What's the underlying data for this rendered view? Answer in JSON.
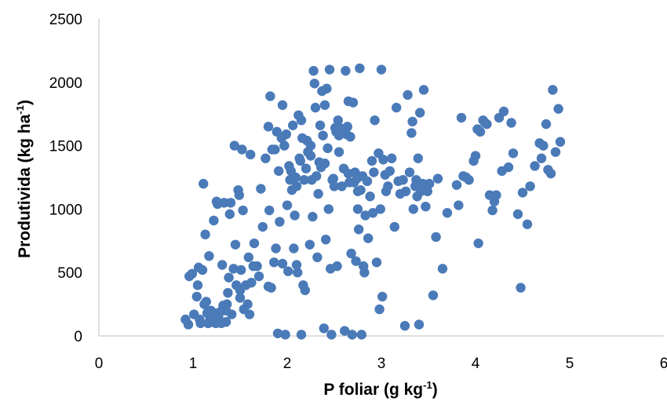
{
  "chart_data": {
    "type": "scatter",
    "title": "",
    "xlabel": {
      "main": "P foliar (g kg",
      "sup": "-1",
      "end": ")"
    },
    "ylabel": {
      "main": "Produtivida (kg ha",
      "sup": "-1",
      "end": ")"
    },
    "xlim": [
      0,
      6
    ],
    "ylim": [
      0,
      2500
    ],
    "x_ticks": [
      "0",
      "1",
      "2",
      "3",
      "4",
      "5",
      "6"
    ],
    "y_ticks": [
      "0",
      "500",
      "1000",
      "1500",
      "2000",
      "2500"
    ],
    "grid": false,
    "legend": "none",
    "marker_color": "#4a7ab8",
    "series": [
      {
        "points": [
          [
            0.92,
            130
          ],
          [
            0.95,
            90
          ],
          [
            0.96,
            470
          ],
          [
            0.99,
            490
          ],
          [
            1.01,
            170
          ],
          [
            1.04,
            310
          ],
          [
            1.05,
            400
          ],
          [
            1.06,
            540
          ],
          [
            1.07,
            130
          ],
          [
            1.08,
            100
          ],
          [
            1.1,
            520
          ],
          [
            1.11,
            1200
          ],
          [
            1.12,
            250
          ],
          [
            1.13,
            800
          ],
          [
            1.14,
            270
          ],
          [
            1.15,
            180
          ],
          [
            1.16,
            100
          ],
          [
            1.17,
            630
          ],
          [
            1.18,
            150
          ],
          [
            1.19,
            200
          ],
          [
            1.2,
            110
          ],
          [
            1.22,
            910
          ],
          [
            1.23,
            180
          ],
          [
            1.24,
            100
          ],
          [
            1.25,
            1060
          ],
          [
            1.26,
            1040
          ],
          [
            1.27,
            150
          ],
          [
            1.29,
            190
          ],
          [
            1.3,
            100
          ],
          [
            1.31,
            560
          ],
          [
            1.32,
            240
          ],
          [
            1.33,
            1050
          ],
          [
            1.35,
            110
          ],
          [
            1.36,
            250
          ],
          [
            1.37,
            340
          ],
          [
            1.38,
            460
          ],
          [
            1.39,
            960
          ],
          [
            1.4,
            1050
          ],
          [
            1.41,
            170
          ],
          [
            1.43,
            530
          ],
          [
            1.44,
            1500
          ],
          [
            1.45,
            720
          ],
          [
            1.46,
            400
          ],
          [
            1.48,
            1150
          ],
          [
            1.49,
            1110
          ],
          [
            1.5,
            300
          ],
          [
            1.51,
            520
          ],
          [
            1.52,
            1470
          ],
          [
            1.53,
            990
          ],
          [
            1.54,
            210
          ],
          [
            1.56,
            400
          ],
          [
            1.58,
            250
          ],
          [
            1.59,
            620
          ],
          [
            1.6,
            170
          ],
          [
            1.61,
            1430
          ],
          [
            1.62,
            420
          ],
          [
            1.64,
            550
          ],
          [
            1.65,
            730
          ],
          [
            1.68,
            550
          ],
          [
            1.7,
            470
          ],
          [
            1.72,
            1160
          ],
          [
            1.74,
            860
          ],
          [
            1.77,
            1400
          ],
          [
            1.8,
            1650
          ],
          [
            1.81,
            990
          ],
          [
            1.82,
            1890
          ],
          [
            1.83,
            380
          ],
          [
            1.84,
            1470
          ],
          [
            1.86,
            580
          ],
          [
            1.87,
            1470
          ],
          [
            1.88,
            690
          ],
          [
            1.89,
            1610
          ],
          [
            1.9,
            20
          ],
          [
            1.91,
            1300
          ],
          [
            1.92,
            900
          ],
          [
            1.94,
            1560
          ],
          [
            1.95,
            1820
          ],
          [
            1.97,
            1500
          ],
          [
            1.98,
            10
          ],
          [
            1.99,
            1590
          ],
          [
            2.0,
            1030
          ],
          [
            2.01,
            510
          ],
          [
            2.02,
            1340
          ],
          [
            2.03,
            1230
          ],
          [
            2.04,
            1300
          ],
          [
            2.06,
            1660
          ],
          [
            2.07,
            690
          ],
          [
            2.08,
            950
          ],
          [
            2.09,
            1250
          ],
          [
            2.1,
            1180
          ],
          [
            2.11,
            500
          ],
          [
            2.12,
            1740
          ],
          [
            2.13,
            1400
          ],
          [
            2.14,
            1380
          ],
          [
            2.15,
            10
          ],
          [
            2.16,
            1560
          ],
          [
            2.17,
            400
          ],
          [
            2.18,
            1230
          ],
          [
            2.19,
            360
          ],
          [
            2.2,
            1320
          ],
          [
            2.21,
            1540
          ],
          [
            2.22,
            1450
          ],
          [
            2.24,
            720
          ],
          [
            2.25,
            1500
          ],
          [
            2.26,
            1230
          ],
          [
            2.27,
            940
          ],
          [
            2.28,
            2090
          ],
          [
            2.29,
            1990
          ],
          [
            2.3,
            1800
          ],
          [
            2.31,
            1260
          ],
          [
            2.32,
            620
          ],
          [
            2.33,
            1120
          ],
          [
            2.34,
            1370
          ],
          [
            2.35,
            1660
          ],
          [
            2.36,
            1330
          ],
          [
            2.37,
            1930
          ],
          [
            2.38,
            1580
          ],
          [
            2.39,
            60
          ],
          [
            2.4,
            1820
          ],
          [
            2.41,
            760
          ],
          [
            2.42,
            1950
          ],
          [
            2.43,
            1480
          ],
          [
            2.44,
            1000
          ],
          [
            2.45,
            2100
          ],
          [
            2.46,
            530
          ],
          [
            2.47,
            10
          ],
          [
            2.48,
            1230
          ],
          [
            2.49,
            1240
          ],
          [
            2.5,
            1180
          ],
          [
            2.51,
            1640
          ],
          [
            2.52,
            1610
          ],
          [
            2.53,
            550
          ],
          [
            2.54,
            1700
          ],
          [
            2.55,
            1450
          ],
          [
            2.56,
            1640
          ],
          [
            2.58,
            1180
          ],
          [
            2.6,
            1320
          ],
          [
            2.61,
            40
          ],
          [
            2.62,
            2090
          ],
          [
            2.63,
            1590
          ],
          [
            2.64,
            1650
          ],
          [
            2.65,
            1850
          ],
          [
            2.66,
            1210
          ],
          [
            2.67,
            1570
          ],
          [
            2.68,
            650
          ],
          [
            2.69,
            10
          ],
          [
            2.7,
            1840
          ],
          [
            2.71,
            1210
          ],
          [
            2.72,
            1290
          ],
          [
            2.73,
            590
          ],
          [
            2.74,
            1240
          ],
          [
            2.75,
            1140
          ],
          [
            2.76,
            840
          ],
          [
            2.77,
            2110
          ],
          [
            2.78,
            1150
          ],
          [
            2.79,
            10
          ],
          [
            2.8,
            1260
          ],
          [
            2.81,
            550
          ],
          [
            2.82,
            500
          ],
          [
            2.83,
            950
          ],
          [
            2.85,
            1220
          ],
          [
            2.86,
            770
          ],
          [
            2.88,
            1100
          ],
          [
            2.9,
            1380
          ],
          [
            2.91,
            970
          ],
          [
            2.92,
            1290
          ],
          [
            2.93,
            1700
          ],
          [
            2.95,
            580
          ],
          [
            2.97,
            1440
          ],
          [
            2.98,
            210
          ],
          [
            2.99,
            1000
          ],
          [
            3.0,
            2100
          ],
          [
            3.01,
            310
          ],
          [
            3.02,
            1390
          ],
          [
            3.04,
            1270
          ],
          [
            3.05,
            1140
          ],
          [
            3.07,
            1180
          ],
          [
            3.09,
            1300
          ],
          [
            3.11,
            1400
          ],
          [
            3.14,
            860
          ],
          [
            3.16,
            1800
          ],
          [
            3.18,
            1220
          ],
          [
            3.2,
            1120
          ],
          [
            3.23,
            1230
          ],
          [
            3.25,
            80
          ],
          [
            3.26,
            1140
          ],
          [
            3.28,
            1900
          ],
          [
            3.3,
            1290
          ],
          [
            3.32,
            1600
          ],
          [
            3.33,
            1690
          ],
          [
            3.34,
            1000
          ],
          [
            3.36,
            1180
          ],
          [
            3.37,
            1230
          ],
          [
            3.38,
            1100
          ],
          [
            3.39,
            1400
          ],
          [
            3.4,
            90
          ],
          [
            3.41,
            1760
          ],
          [
            3.42,
            1140
          ],
          [
            3.44,
            1200
          ],
          [
            3.45,
            1940
          ],
          [
            3.47,
            1020
          ],
          [
            3.49,
            1140
          ],
          [
            3.51,
            1200
          ],
          [
            3.55,
            320
          ],
          [
            3.58,
            780
          ],
          [
            3.6,
            1240
          ],
          [
            3.65,
            530
          ],
          [
            3.7,
            970
          ],
          [
            3.8,
            1190
          ],
          [
            3.82,
            1030
          ],
          [
            3.85,
            1720
          ],
          [
            3.87,
            1260
          ],
          [
            3.9,
            1250
          ],
          [
            3.93,
            1230
          ],
          [
            3.98,
            1380
          ],
          [
            4.0,
            1420
          ],
          [
            4.02,
            1630
          ],
          [
            4.03,
            730
          ],
          [
            4.05,
            1610
          ],
          [
            4.08,
            1700
          ],
          [
            4.1,
            1680
          ],
          [
            4.12,
            1670
          ],
          [
            4.15,
            1110
          ],
          [
            4.18,
            990
          ],
          [
            4.2,
            1060
          ],
          [
            4.22,
            1110
          ],
          [
            4.25,
            1720
          ],
          [
            4.28,
            1300
          ],
          [
            4.3,
            1770
          ],
          [
            4.35,
            1330
          ],
          [
            4.38,
            1680
          ],
          [
            4.4,
            1440
          ],
          [
            4.45,
            960
          ],
          [
            4.48,
            380
          ],
          [
            4.5,
            1130
          ],
          [
            4.55,
            880
          ],
          [
            4.58,
            1180
          ],
          [
            4.63,
            1340
          ],
          [
            4.68,
            1520
          ],
          [
            4.7,
            1400
          ],
          [
            4.72,
            1500
          ],
          [
            4.75,
            1670
          ],
          [
            4.77,
            1310
          ],
          [
            4.8,
            1280
          ],
          [
            4.82,
            1940
          ],
          [
            4.85,
            1450
          ],
          [
            4.88,
            1790
          ],
          [
            4.9,
            1530
          ],
          [
            1.8,
            390
          ],
          [
            1.95,
            570
          ],
          [
            2.05,
            1150
          ],
          [
            2.15,
            1700
          ],
          [
            2.55,
            1580
          ],
          [
            2.75,
            1000
          ],
          [
            2.4,
            1360
          ],
          [
            2.25,
            1420
          ],
          [
            1.5,
            360
          ],
          [
            2.1,
            560
          ],
          [
            1.35,
            200
          ],
          [
            2.65,
            1280
          ]
        ]
      }
    ]
  }
}
